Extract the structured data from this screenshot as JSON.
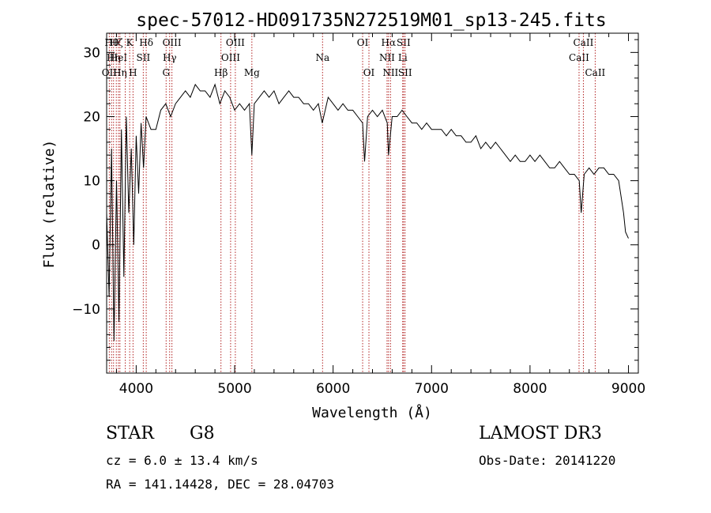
{
  "chart_data": {
    "type": "line",
    "title": "spec-57012-HD091735N272519M01_sp13-245.fits",
    "xlabel": "Wavelength (Å)",
    "ylabel": "Flux (relative)",
    "xlim": [
      3700,
      9100
    ],
    "ylim": [
      -20,
      33
    ],
    "xticks": [
      4000,
      5000,
      6000,
      7000,
      8000,
      9000
    ],
    "xtick_labels": [
      "4000",
      "5000",
      "6000",
      "7000",
      "8000",
      "9000"
    ],
    "yticks": [
      -10,
      0,
      10,
      20,
      30
    ],
    "ytick_labels": [
      "−10",
      "0",
      "10",
      "20",
      "30"
    ],
    "line_color": "#000000",
    "marker_color": "#b22222",
    "series": [
      {
        "name": "flux",
        "x": [
          3700,
          3725,
          3750,
          3775,
          3800,
          3825,
          3850,
          3875,
          3900,
          3925,
          3950,
          3975,
          4000,
          4025,
          4050,
          4075,
          4100,
          4150,
          4200,
          4250,
          4300,
          4350,
          4400,
          4450,
          4500,
          4550,
          4600,
          4650,
          4700,
          4750,
          4800,
          4850,
          4900,
          4950,
          5000,
          5050,
          5100,
          5150,
          5175,
          5200,
          5250,
          5300,
          5350,
          5400,
          5450,
          5500,
          5550,
          5600,
          5650,
          5700,
          5750,
          5800,
          5850,
          5890,
          5950,
          6000,
          6050,
          6100,
          6150,
          6200,
          6250,
          6300,
          6320,
          6350,
          6400,
          6450,
          6500,
          6550,
          6563,
          6600,
          6650,
          6700,
          6750,
          6800,
          6850,
          6900,
          6950,
          7000,
          7050,
          7100,
          7150,
          7200,
          7250,
          7300,
          7350,
          7400,
          7450,
          7500,
          7550,
          7600,
          7650,
          7700,
          7750,
          7800,
          7850,
          7900,
          7950,
          8000,
          8050,
          8100,
          8150,
          8200,
          8250,
          8300,
          8350,
          8400,
          8450,
          8500,
          8520,
          8550,
          8600,
          8650,
          8700,
          8750,
          8800,
          8850,
          8900,
          8950,
          8970,
          9000
        ],
        "y": [
          5,
          -8,
          15,
          -15,
          10,
          -12,
          18,
          -5,
          20,
          5,
          15,
          0,
          17,
          8,
          19,
          12,
          20,
          18,
          18,
          21,
          22,
          20,
          22,
          23,
          24,
          23,
          25,
          24,
          24,
          23,
          25,
          22,
          24,
          23,
          21,
          22,
          21,
          22,
          14,
          22,
          23,
          24,
          23,
          24,
          22,
          23,
          24,
          23,
          23,
          22,
          22,
          21,
          22,
          19,
          23,
          22,
          21,
          22,
          21,
          21,
          20,
          19,
          13,
          20,
          21,
          20,
          21,
          19,
          14,
          20,
          20,
          21,
          20,
          19,
          19,
          18,
          19,
          18,
          18,
          18,
          17,
          18,
          17,
          17,
          16,
          16,
          17,
          15,
          16,
          15,
          16,
          15,
          14,
          13,
          14,
          13,
          13,
          14,
          13,
          14,
          13,
          12,
          12,
          13,
          12,
          11,
          11,
          10,
          5,
          11,
          12,
          11,
          12,
          12,
          11,
          11,
          10,
          5,
          2,
          1
        ]
      }
    ],
    "markers": [
      {
        "wavelength": 3750,
        "label": "Hθ",
        "row": 1
      },
      {
        "wavelength": 3727,
        "label": "OII",
        "row": 3
      },
      {
        "wavelength": 3770,
        "label": "Hη",
        "row": 2
      },
      {
        "wavelength": 3798,
        "label": "Hζ",
        "row": 0
      },
      {
        "wavelength": 3820,
        "label": "HeI",
        "row": 2
      },
      {
        "wavelength": 3835,
        "label": "Hη",
        "row": 3
      },
      {
        "wavelength": 3889,
        "label": "",
        "row": 0
      },
      {
        "wavelength": 3934,
        "label": "K",
        "row": 1
      },
      {
        "wavelength": 3968,
        "label": "H",
        "row": 3
      },
      {
        "wavelength": 4072,
        "label": "SII",
        "row": 2
      },
      {
        "wavelength": 4102,
        "label": "Hδ",
        "row": 1
      },
      {
        "wavelength": 4304,
        "label": "G",
        "row": 3
      },
      {
        "wavelength": 4340,
        "label": "Hγ",
        "row": 2
      },
      {
        "wavelength": 4363,
        "label": "OIII",
        "row": 1
      },
      {
        "wavelength": 4861,
        "label": "Hβ",
        "row": 3
      },
      {
        "wavelength": 4959,
        "label": "OIII",
        "row": 2
      },
      {
        "wavelength": 5007,
        "label": "OIII",
        "row": 1
      },
      {
        "wavelength": 5175,
        "label": "Mg",
        "row": 3
      },
      {
        "wavelength": 5893,
        "label": "Na",
        "row": 2
      },
      {
        "wavelength": 6300,
        "label": "OI",
        "row": 1
      },
      {
        "wavelength": 6364,
        "label": "OI",
        "row": 3
      },
      {
        "wavelength": 6548,
        "label": "NII",
        "row": 2
      },
      {
        "wavelength": 6563,
        "label": "Hα",
        "row": 1
      },
      {
        "wavelength": 6583,
        "label": "NII",
        "row": 3
      },
      {
        "wavelength": 6707,
        "label": "Li",
        "row": 2
      },
      {
        "wavelength": 6716,
        "label": "SII",
        "row": 1
      },
      {
        "wavelength": 6731,
        "label": "SII",
        "row": 3
      },
      {
        "wavelength": 8498,
        "label": "CaII",
        "row": 2
      },
      {
        "wavelength": 8542,
        "label": "CaII",
        "row": 1
      },
      {
        "wavelength": 8662,
        "label": "CaII",
        "row": 3
      }
    ]
  },
  "info": {
    "object_type": "STAR",
    "subclass": "G8",
    "survey": "LAMOST DR3",
    "cz": "cz = 6.0 ± 13.4 km/s",
    "obs_date": "Obs-Date: 20141220",
    "radec": "RA = 141.14428, DEC =  28.04703"
  }
}
